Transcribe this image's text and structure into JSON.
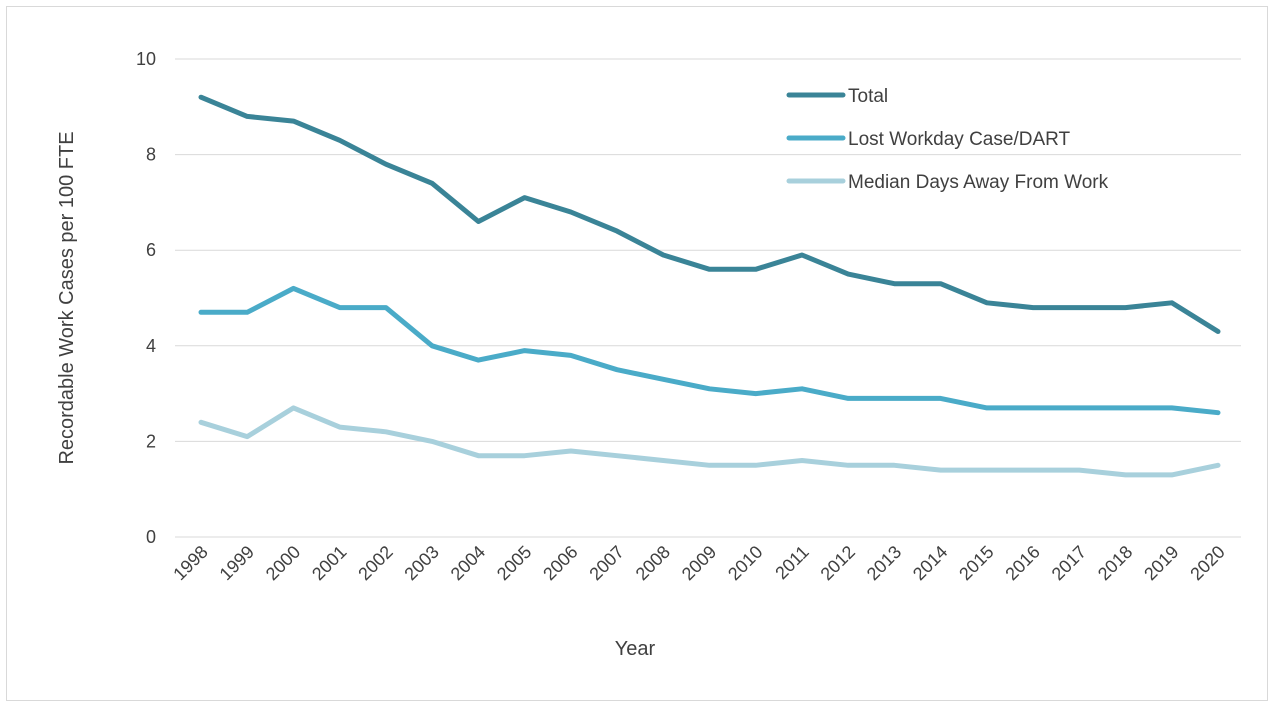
{
  "chart_data": {
    "type": "line",
    "xlabel": "Year",
    "ylabel": "Recordable Work Cases per 100 FTE",
    "ylim": [
      0,
      10
    ],
    "yticks": [
      0,
      2,
      4,
      6,
      8,
      10
    ],
    "grid": true,
    "legend_position": "top-right",
    "categories": [
      "1998",
      "1999",
      "2000",
      "2001",
      "2002",
      "2003",
      "2004",
      "2005",
      "2006",
      "2007",
      "2008",
      "2009",
      "2010",
      "2011",
      "2012",
      "2013",
      "2014",
      "2015",
      "2016",
      "2017",
      "2018",
      "2019",
      "2020"
    ],
    "series": [
      {
        "name": "Total",
        "color": "#3a8497",
        "values": [
          9.2,
          8.8,
          8.7,
          8.3,
          7.8,
          7.4,
          6.6,
          7.1,
          6.8,
          6.4,
          5.9,
          5.6,
          5.6,
          5.9,
          5.5,
          5.3,
          5.3,
          4.9,
          4.8,
          4.8,
          4.8,
          4.9,
          4.3
        ]
      },
      {
        "name": "Lost Workday Case/DART",
        "color": "#4aabc8",
        "values": [
          4.7,
          4.7,
          5.2,
          4.8,
          4.8,
          4.0,
          3.7,
          3.9,
          3.8,
          3.5,
          3.3,
          3.1,
          3.0,
          3.1,
          2.9,
          2.9,
          2.9,
          2.7,
          2.7,
          2.7,
          2.7,
          2.7,
          2.6
        ]
      },
      {
        "name": "Median Days Away From Work",
        "color": "#a8d0dc",
        "values": [
          2.4,
          2.1,
          2.7,
          2.3,
          2.2,
          2.0,
          1.7,
          1.7,
          1.8,
          1.7,
          1.6,
          1.5,
          1.5,
          1.6,
          1.5,
          1.5,
          1.4,
          1.4,
          1.4,
          1.4,
          1.3,
          1.3,
          1.5
        ]
      }
    ]
  }
}
